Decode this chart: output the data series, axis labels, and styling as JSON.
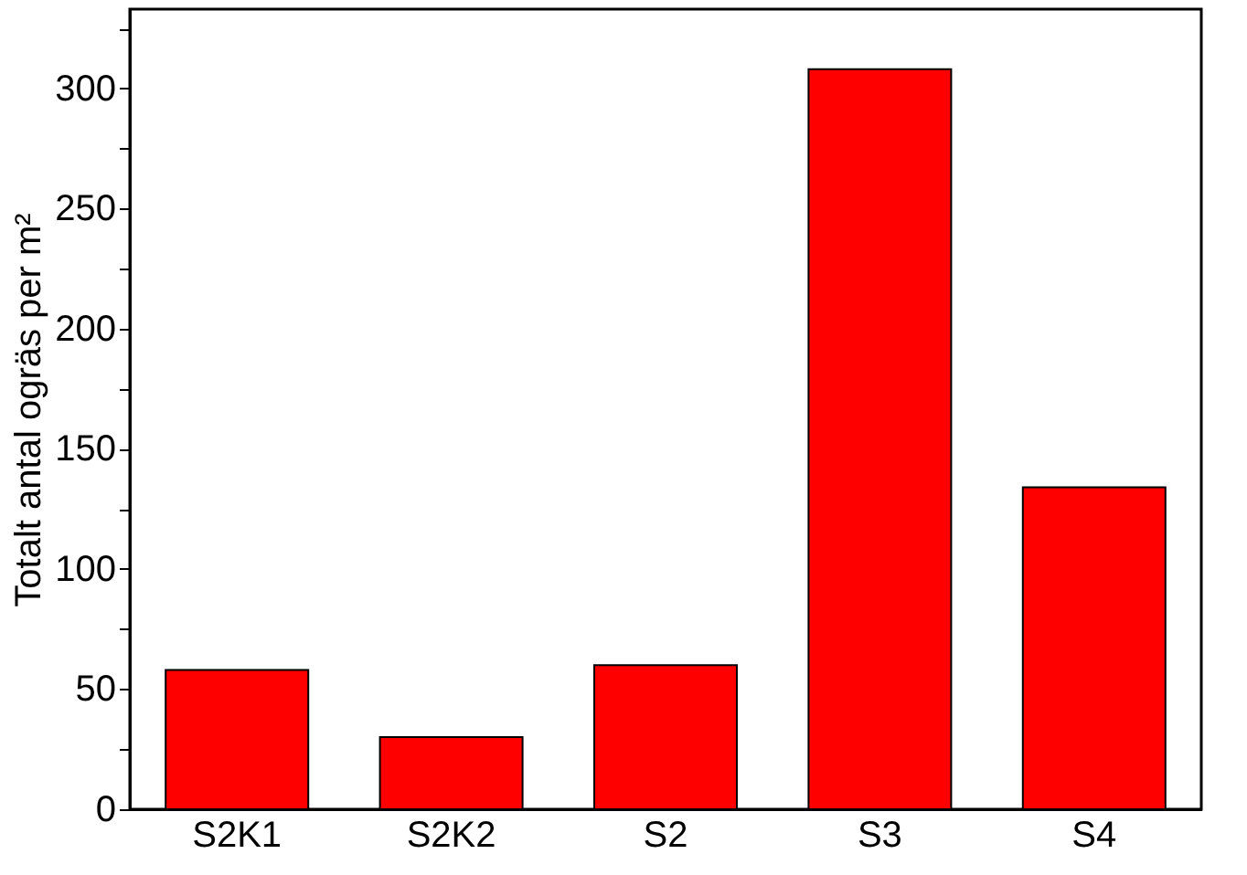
{
  "chart_data": {
    "type": "bar",
    "ylabel": "Totalt antal ogräs per m²",
    "categories": [
      "S2K1",
      "S2K2",
      "S2",
      "S3",
      "S4"
    ],
    "values": [
      58,
      30,
      60,
      308,
      134
    ],
    "color": "#ff0000",
    "ylim": [
      0,
      333
    ],
    "yticks": [
      0,
      {
        "value": 25,
        "label": null
      },
      50,
      {
        "value": 75,
        "label": null
      },
      100,
      {
        "value": 125,
        "label": null
      },
      150,
      {
        "value": 175,
        "label": null
      },
      200,
      {
        "value": 225,
        "label": null
      },
      250,
      {
        "value": 275,
        "label": null
      },
      300,
      {
        "value": 325,
        "label": null
      }
    ],
    "grid": false
  }
}
